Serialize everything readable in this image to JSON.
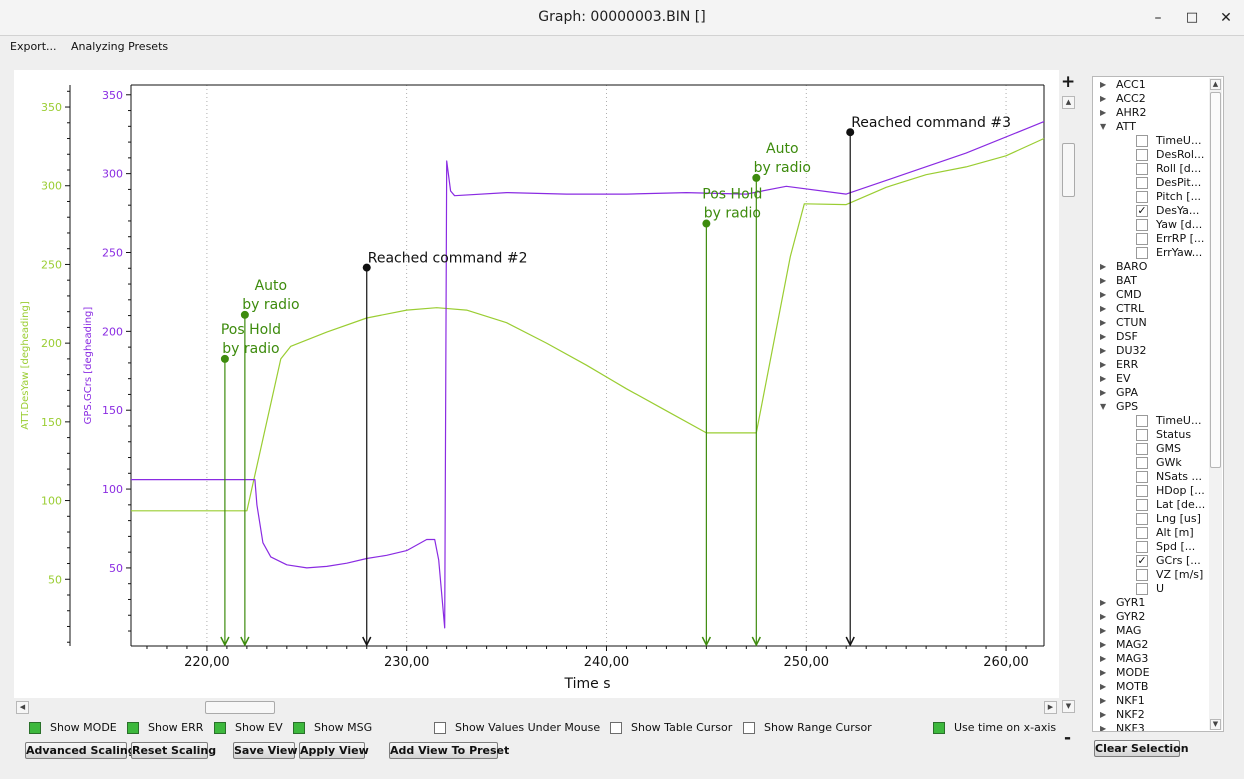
{
  "window": {
    "title": "Graph: 00000003.BIN []",
    "minimize": "–",
    "maximize": "□",
    "close": "✕"
  },
  "menu": [
    "Export...",
    "Analyzing Presets"
  ],
  "zoom": {
    "plus": "+",
    "minus": "-"
  },
  "checkboxes": [
    {
      "label": "Show MODE",
      "checked": true
    },
    {
      "label": "Show ERR",
      "checked": true
    },
    {
      "label": "Show EV",
      "checked": true
    },
    {
      "label": "Show MSG",
      "checked": true
    },
    {
      "label": "Show Values Under Mouse",
      "checked": false
    },
    {
      "label": "Show Table Cursor",
      "checked": false
    },
    {
      "label": "Show Range Cursor",
      "checked": false
    },
    {
      "label": "Use time on x-axis",
      "checked": true
    }
  ],
  "buttons": [
    "Advanced Scaling",
    "Reset Scaling",
    "Save View",
    "Apply View",
    "Add View To Preset"
  ],
  "clear_selection": "Clear Selection",
  "tree": [
    {
      "label": "ACC1",
      "type": "group",
      "expanded": false
    },
    {
      "label": "ACC2",
      "type": "group",
      "expanded": false
    },
    {
      "label": "AHR2",
      "type": "group",
      "expanded": false
    },
    {
      "label": "ATT",
      "type": "group",
      "expanded": true
    },
    {
      "label": "TimeU...",
      "type": "field",
      "checked": false
    },
    {
      "label": "DesRol...",
      "type": "field",
      "checked": false
    },
    {
      "label": "Roll [d...",
      "type": "field",
      "checked": false
    },
    {
      "label": "DesPit...",
      "type": "field",
      "checked": false
    },
    {
      "label": "Pitch [...",
      "type": "field",
      "checked": false
    },
    {
      "label": "DesYa...",
      "type": "field",
      "checked": true
    },
    {
      "label": "Yaw [d...",
      "type": "field",
      "checked": false
    },
    {
      "label": "ErrRP [...",
      "type": "field",
      "checked": false
    },
    {
      "label": "ErrYaw...",
      "type": "field",
      "checked": false
    },
    {
      "label": "BARO",
      "type": "group",
      "expanded": false
    },
    {
      "label": "BAT",
      "type": "group",
      "expanded": false
    },
    {
      "label": "CMD",
      "type": "group",
      "expanded": false
    },
    {
      "label": "CTRL",
      "type": "group",
      "expanded": false
    },
    {
      "label": "CTUN",
      "type": "group",
      "expanded": false
    },
    {
      "label": "DSF",
      "type": "group",
      "expanded": false
    },
    {
      "label": "DU32",
      "type": "group",
      "expanded": false
    },
    {
      "label": "ERR",
      "type": "group",
      "expanded": false
    },
    {
      "label": "EV",
      "type": "group",
      "expanded": false
    },
    {
      "label": "GPA",
      "type": "group",
      "expanded": false
    },
    {
      "label": "GPS",
      "type": "group",
      "expanded": true
    },
    {
      "label": "TimeU...",
      "type": "field",
      "checked": false
    },
    {
      "label": "Status",
      "type": "field",
      "checked": false
    },
    {
      "label": "GMS",
      "type": "field",
      "checked": false
    },
    {
      "label": "GWk",
      "type": "field",
      "checked": false
    },
    {
      "label": "NSats ...",
      "type": "field",
      "checked": false
    },
    {
      "label": "HDop [...",
      "type": "field",
      "checked": false
    },
    {
      "label": "Lat [de...",
      "type": "field",
      "checked": false
    },
    {
      "label": "Lng [us]",
      "type": "field",
      "checked": false
    },
    {
      "label": "Alt [m]",
      "type": "field",
      "checked": false
    },
    {
      "label": "Spd [...",
      "type": "field",
      "checked": false
    },
    {
      "label": "GCrs [...",
      "type": "field",
      "checked": true
    },
    {
      "label": "VZ [m/s]",
      "type": "field",
      "checked": false
    },
    {
      "label": "U",
      "type": "field",
      "checked": false
    },
    {
      "label": "GYR1",
      "type": "group",
      "expanded": false
    },
    {
      "label": "GYR2",
      "type": "group",
      "expanded": false
    },
    {
      "label": "MAG",
      "type": "group",
      "expanded": false
    },
    {
      "label": "MAG2",
      "type": "group",
      "expanded": false
    },
    {
      "label": "MAG3",
      "type": "group",
      "expanded": false
    },
    {
      "label": "MODE",
      "type": "group",
      "expanded": false
    },
    {
      "label": "MOTB",
      "type": "group",
      "expanded": false
    },
    {
      "label": "NKF1",
      "type": "group",
      "expanded": false
    },
    {
      "label": "NKF2",
      "type": "group",
      "expanded": false
    },
    {
      "label": "NKF3",
      "type": "group",
      "expanded": false
    }
  ],
  "chart_data": {
    "type": "line",
    "xlabel": "Time s",
    "xlim": [
      216.2,
      261.9
    ],
    "xticks": [
      220,
      230,
      240,
      250,
      260
    ],
    "xtick_labels": [
      "220,00",
      "230,00",
      "240,00",
      "250,00",
      "260,00"
    ],
    "grid": true,
    "axes": [
      {
        "label": "ATT.DesYaw [degheading]",
        "color": "#9acd32",
        "ylim": [
          7.6,
          364.0
        ],
        "ticks": [
          50,
          100,
          150,
          200,
          250,
          300,
          350
        ]
      },
      {
        "label": "GPS.GCrs [degheading]",
        "color": "#8a2be2",
        "ylim": [
          0.5,
          356.2
        ],
        "ticks": [
          50,
          100,
          150,
          200,
          250,
          300,
          350
        ]
      }
    ],
    "series": [
      {
        "name": "ATT.DesYaw [degheading]",
        "axis": 0,
        "color": "#9acd32",
        "x": [
          216.2,
          222.0,
          223.7,
          224.2,
          226,
          228,
          230,
          231.5,
          233,
          235,
          237,
          239,
          241,
          243,
          245,
          247.5,
          249.2,
          249.9,
          252,
          254,
          256,
          258,
          260,
          261.9
        ],
        "y": [
          93.5,
          93.5,
          190,
          198,
          207,
          216,
          221,
          222.5,
          221,
          213,
          200,
          186,
          171,
          157,
          143,
          143,
          255,
          288.5,
          288,
          299,
          307,
          312,
          319,
          330
        ]
      },
      {
        "name": "GPS.GCrs [degheading]",
        "axis": 1,
        "color": "#8a2be2",
        "x": [
          216.2,
          222.4,
          222.5,
          222.8,
          223.2,
          224,
          225,
          226,
          227,
          228,
          229,
          230,
          231,
          231.4,
          231.6,
          231.9,
          232.0,
          232.2,
          232.4,
          235,
          238,
          241,
          244,
          247,
          249,
          252,
          255,
          258,
          261.9
        ],
        "y": [
          106,
          106,
          90,
          66,
          57,
          52,
          50,
          51,
          53,
          56,
          58,
          61,
          68,
          68,
          55,
          12,
          308,
          289,
          286,
          288,
          287,
          287,
          288,
          287,
          292,
          287,
          300,
          313,
          333
        ]
      }
    ],
    "markers": [
      {
        "x": 220.9,
        "label": [
          "Pos Hold",
          "by radio"
        ],
        "color": "#3d8b0d",
        "y": 190
      },
      {
        "x": 221.9,
        "label": [
          "Auto",
          "by radio"
        ],
        "color": "#3d8b0d",
        "y": 218
      },
      {
        "x": 228.0,
        "label": [
          "Reached command #2"
        ],
        "color": "#111111",
        "y": 248
      },
      {
        "x": 245.0,
        "label": [
          "Pos Hold",
          "by radio"
        ],
        "color": "#3d8b0d",
        "y": 276
      },
      {
        "x": 247.5,
        "label": [
          "Auto",
          "by radio"
        ],
        "color": "#3d8b0d",
        "y": 305
      },
      {
        "x": 252.2,
        "label": [
          "Reached command #3"
        ],
        "color": "#111111",
        "y": 334
      }
    ]
  }
}
